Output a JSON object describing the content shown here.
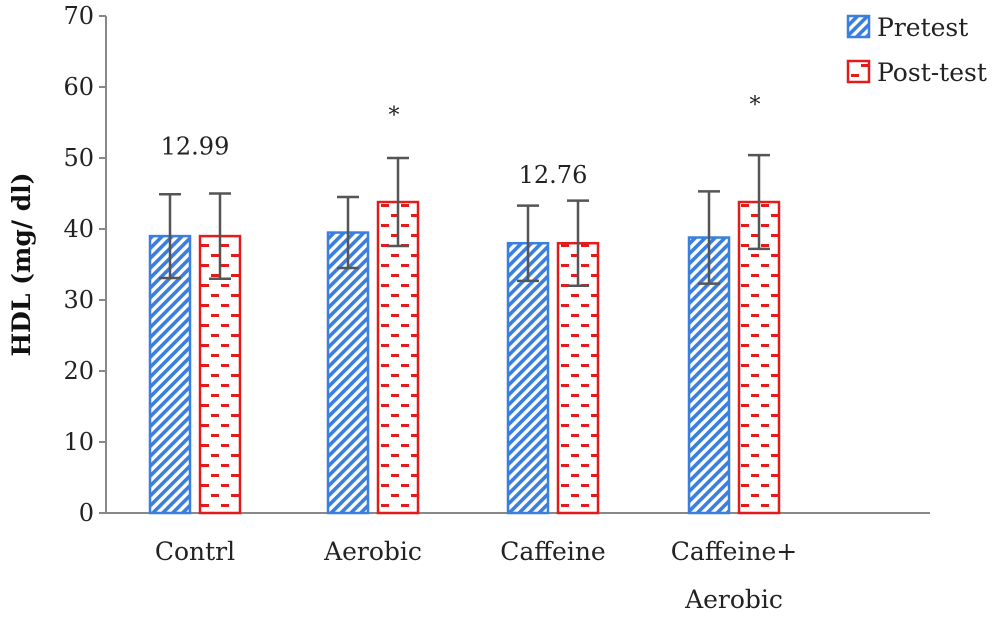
{
  "chart_data": {
    "type": "bar",
    "ylabel": "HDL (mg/ dl)",
    "xlabel": "",
    "ylim": [
      0,
      70
    ],
    "yticks": [
      0,
      10,
      20,
      30,
      40,
      50,
      60,
      70
    ],
    "grid": false,
    "legend_position": "top-right",
    "categories": [
      [
        "Contrl"
      ],
      [
        "Aerobic"
      ],
      [
        "Caffeine"
      ],
      [
        "Caffeine+",
        "Aerobic"
      ]
    ],
    "series": [
      {
        "name": "Pretest",
        "color": "#3a7fe0",
        "pattern": "diagonal-stripes",
        "values": [
          39,
          39.5,
          38,
          38.8
        ],
        "errors": [
          5.9,
          5,
          5.3,
          6.5
        ]
      },
      {
        "name": "Post-test",
        "color": "#e31b1b",
        "pattern": "dashes",
        "values": [
          39,
          43.8,
          38,
          43.8
        ],
        "errors": [
          6,
          6.2,
          6,
          6.6
        ]
      }
    ],
    "annotations": [
      {
        "text": "12.99",
        "category_index": 0,
        "y": 50.5
      },
      {
        "text": "12.76",
        "category_index": 2,
        "y": 46.5
      },
      {
        "text": "*",
        "category_index": 1,
        "series_index": 1,
        "y": 55
      },
      {
        "text": "*",
        "category_index": 3,
        "series_index": 1,
        "y": 56.5
      }
    ]
  }
}
